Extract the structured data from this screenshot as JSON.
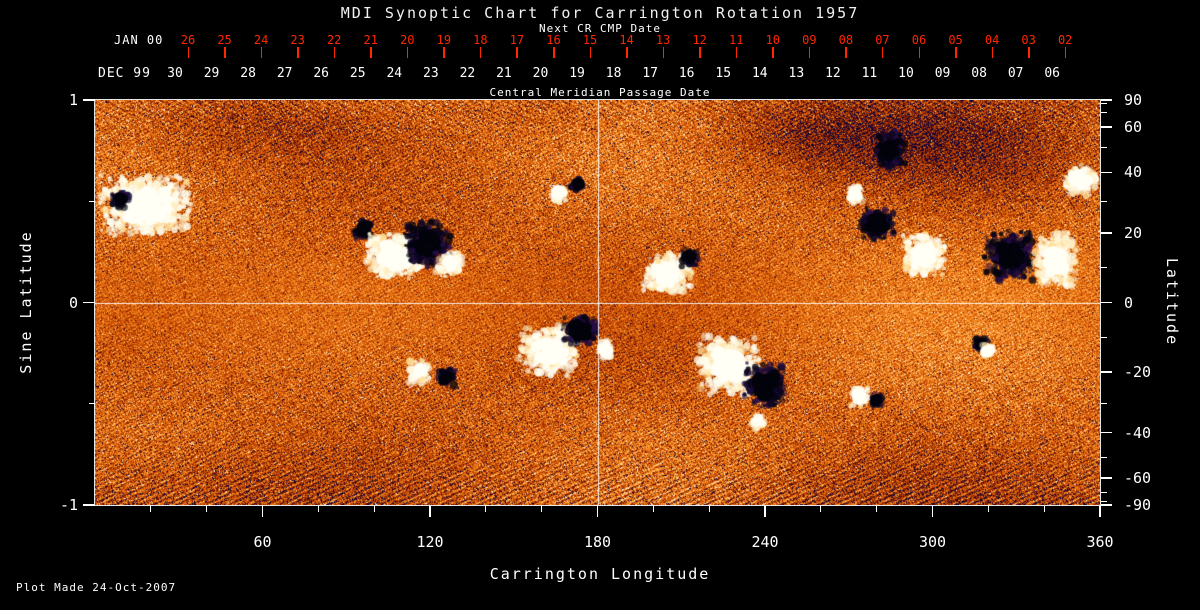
{
  "title": "MDI Synoptic Chart for Carrington Rotation 1957",
  "footer": "Plot Made 24-Oct-2007",
  "colors": {
    "background": "#000000",
    "text": "#ffffff",
    "date_axis_red": "#ff2600",
    "frame": "#e6e6e6"
  },
  "top_axis": {
    "jan_month_label": "JAN 00",
    "next_cr_label": "Next CR CMP Date",
    "jan_ticks": [
      "26",
      "25",
      "24",
      "23",
      "22",
      "21",
      "20",
      "19",
      "18",
      "17",
      "16",
      "15",
      "14",
      "13",
      "12",
      "11",
      "10",
      "09",
      "08",
      "07",
      "06",
      "05",
      "04",
      "03",
      "02"
    ],
    "dec_month_label": "DEC 99",
    "dec_ticks": [
      "30",
      "29",
      "28",
      "27",
      "26",
      "25",
      "24",
      "23",
      "22",
      "21",
      "20",
      "19",
      "18",
      "17",
      "16",
      "15",
      "14",
      "13",
      "12",
      "11",
      "10",
      "09",
      "08",
      "07",
      "06"
    ],
    "cmp_label": "Central Meridian Passage Date"
  },
  "left_axis": {
    "label": "Sine Latitude",
    "ticks": [
      "1",
      "0",
      "-1"
    ],
    "minor_ticks": [
      0.5,
      -0.5
    ]
  },
  "right_axis": {
    "label": "Latitude",
    "ticks": [
      "90",
      "60",
      "40",
      "20",
      "0",
      "-20",
      "-40",
      "-60",
      "-90"
    ],
    "minor_ticks": [
      80,
      70,
      50,
      30,
      10,
      -10,
      -30,
      -50,
      -70,
      -80
    ]
  },
  "bottom_axis": {
    "label": "Carrington Longitude",
    "ticks": [
      "60",
      "120",
      "180",
      "240",
      "300",
      "360"
    ],
    "minor_ticks": [
      20,
      40,
      80,
      100,
      140,
      160,
      200,
      220,
      260,
      280,
      320,
      340
    ]
  },
  "chart_data": {
    "type": "heatmap",
    "title": "MDI Synoptic Chart for Carrington Rotation 1957",
    "description": "SOHO/MDI photospheric magnetic field synoptic map for Carrington rotation 1957. Orange/red speckled background is mixed-polarity quiet-sun field; bright white patches are strong positive-polarity active regions and dark navy/black patches are strong negative-polarity regions. A white crosshair marks longitude 180 and sine latitude 0. Top secondary axes give the Central Meridian Passage dates (DEC 99 in white, next-rotation JAN 00 dates in red).",
    "xlabel": "Carrington Longitude",
    "ylabel_left": "Sine Latitude",
    "ylabel_right": "Latitude",
    "x_range": [
      0,
      360
    ],
    "y_range_sine_latitude": [
      -1,
      1
    ],
    "x_ticks": [
      60,
      120,
      180,
      240,
      300,
      360
    ],
    "y_ticks_sine_latitude": [
      1,
      0,
      -1
    ],
    "y_ticks_latitude_deg": [
      90,
      60,
      40,
      20,
      0,
      -20,
      -40,
      -60,
      -90
    ],
    "cmp_date_axis": {
      "dec_1999_days": [
        30,
        29,
        28,
        27,
        26,
        25,
        24,
        23,
        22,
        21,
        20,
        19,
        18,
        17,
        16,
        15,
        14,
        13,
        12,
        11,
        10,
        9,
        8,
        7,
        6
      ],
      "jan_2000_next_cr_days": [
        26,
        25,
        24,
        23,
        22,
        21,
        20,
        19,
        18,
        17,
        16,
        15,
        14,
        13,
        12,
        11,
        10,
        9,
        8,
        7,
        6,
        5,
        4,
        3,
        2
      ]
    },
    "crosshair": {
      "longitude": 180,
      "sine_latitude": 0
    },
    "grid": false,
    "legend": "none",
    "colormap_hint": [
      "#080430",
      "#6e1400",
      "#cc4400",
      "#ff8820",
      "#ffd28c",
      "#ffffff"
    ],
    "active_regions": [
      {
        "longitude": 18,
        "sine_latitude": 0.48,
        "radius_deg": 17,
        "radius_sine": 0.16,
        "polarity": "positive"
      },
      {
        "longitude": 9,
        "sine_latitude": 0.51,
        "radius_deg": 3.5,
        "radius_sine": 0.05,
        "polarity": "negative"
      },
      {
        "longitude": 96,
        "sine_latitude": 0.36,
        "radius_deg": 3.5,
        "radius_sine": 0.05,
        "polarity": "negative"
      },
      {
        "longitude": 107,
        "sine_latitude": 0.23,
        "radius_deg": 11,
        "radius_sine": 0.12,
        "polarity": "positive"
      },
      {
        "longitude": 119,
        "sine_latitude": 0.29,
        "radius_deg": 8.5,
        "radius_sine": 0.12,
        "polarity": "negative"
      },
      {
        "longitude": 127,
        "sine_latitude": 0.19,
        "radius_deg": 5,
        "radius_sine": 0.07,
        "polarity": "positive"
      },
      {
        "longitude": 166,
        "sine_latitude": 0.54,
        "radius_deg": 3.5,
        "radius_sine": 0.05,
        "polarity": "positive"
      },
      {
        "longitude": 173,
        "sine_latitude": 0.58,
        "radius_deg": 3,
        "radius_sine": 0.04,
        "polarity": "negative"
      },
      {
        "longitude": 205,
        "sine_latitude": 0.14,
        "radius_deg": 9.5,
        "radius_sine": 0.1,
        "polarity": "positive"
      },
      {
        "longitude": 213,
        "sine_latitude": 0.22,
        "radius_deg": 3.5,
        "radius_sine": 0.05,
        "polarity": "negative"
      },
      {
        "longitude": 280,
        "sine_latitude": 0.39,
        "radius_deg": 7,
        "radius_sine": 0.09,
        "polarity": "negative"
      },
      {
        "longitude": 297,
        "sine_latitude": 0.23,
        "radius_deg": 8.5,
        "radius_sine": 0.11,
        "polarity": "positive"
      },
      {
        "longitude": 328,
        "sine_latitude": 0.23,
        "radius_deg": 9.5,
        "radius_sine": 0.13,
        "polarity": "negative"
      },
      {
        "longitude": 344,
        "sine_latitude": 0.21,
        "radius_deg": 8,
        "radius_sine": 0.14,
        "polarity": "positive"
      },
      {
        "longitude": 353,
        "sine_latitude": 0.6,
        "radius_deg": 6.5,
        "radius_sine": 0.08,
        "polarity": "positive"
      },
      {
        "longitude": 285,
        "sine_latitude": 0.75,
        "radius_deg": 5.5,
        "radius_sine": 0.1,
        "polarity": "negative"
      },
      {
        "longitude": 272,
        "sine_latitude": 0.53,
        "radius_deg": 3.5,
        "radius_sine": 0.05,
        "polarity": "positive"
      },
      {
        "longitude": 163,
        "sine_latitude": -0.24,
        "radius_deg": 11.5,
        "radius_sine": 0.13,
        "polarity": "positive"
      },
      {
        "longitude": 174,
        "sine_latitude": -0.14,
        "radius_deg": 7,
        "radius_sine": 0.08,
        "polarity": "negative"
      },
      {
        "longitude": 183,
        "sine_latitude": -0.23,
        "radius_deg": 3.5,
        "radius_sine": 0.05,
        "polarity": "positive"
      },
      {
        "longitude": 227,
        "sine_latitude": -0.31,
        "radius_deg": 11.5,
        "radius_sine": 0.15,
        "polarity": "positive"
      },
      {
        "longitude": 240,
        "sine_latitude": -0.41,
        "radius_deg": 8,
        "radius_sine": 0.12,
        "polarity": "negative"
      },
      {
        "longitude": 238,
        "sine_latitude": -0.59,
        "radius_deg": 3,
        "radius_sine": 0.045,
        "polarity": "positive"
      },
      {
        "longitude": 116,
        "sine_latitude": -0.34,
        "radius_deg": 4.5,
        "radius_sine": 0.06,
        "polarity": "positive"
      },
      {
        "longitude": 126,
        "sine_latitude": -0.37,
        "radius_deg": 3.5,
        "radius_sine": 0.05,
        "polarity": "negative"
      },
      {
        "longitude": 274,
        "sine_latitude": -0.47,
        "radius_deg": 4,
        "radius_sine": 0.055,
        "polarity": "positive"
      },
      {
        "longitude": 280,
        "sine_latitude": -0.48,
        "radius_deg": 2.5,
        "radius_sine": 0.035,
        "polarity": "negative"
      },
      {
        "longitude": 317,
        "sine_latitude": -0.21,
        "radius_deg": 3,
        "radius_sine": 0.04,
        "polarity": "negative"
      },
      {
        "longitude": 320,
        "sine_latitude": -0.24,
        "radius_deg": 2.5,
        "radius_sine": 0.035,
        "polarity": "positive"
      }
    ]
  }
}
